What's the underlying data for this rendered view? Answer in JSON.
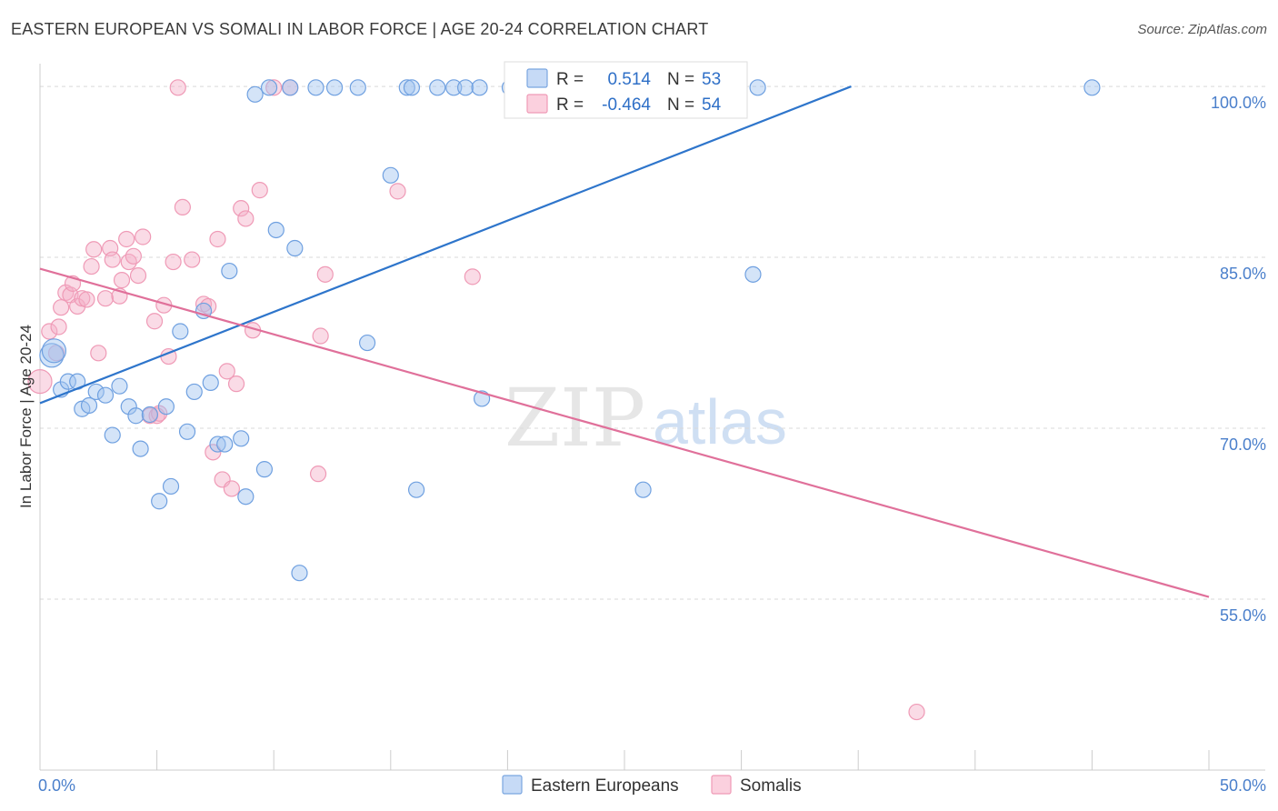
{
  "header": {
    "title": "EASTERN EUROPEAN VS SOMALI IN LABOR FORCE | AGE 20-24 CORRELATION CHART",
    "source": "Source: ZipAtlas.com"
  },
  "watermark": {
    "zip": "ZIP",
    "atlas": "atlas"
  },
  "legend_box": {
    "rows": [
      {
        "r_label": "R =",
        "r_value": "0.514",
        "n_label": "N =",
        "n_value": "53"
      },
      {
        "r_label": "R =",
        "r_value": "-0.464",
        "n_label": "N =",
        "n_value": "54"
      }
    ]
  },
  "bottom_legend": {
    "series1": "Eastern Europeans",
    "series2": "Somalis"
  },
  "chart_data": {
    "type": "scatter",
    "title": "EASTERN EUROPEAN VS SOMALI IN LABOR FORCE | AGE 20-24 CORRELATION CHART",
    "xlabel": "",
    "ylabel": "In Labor Force | Age 20-24",
    "xlim": [
      0,
      50
    ],
    "ylim": [
      40,
      102
    ],
    "x_tick_labels": [
      "0.0%",
      "50.0%"
    ],
    "y_ticks": [
      55,
      70,
      85,
      100
    ],
    "y_tick_labels": [
      "55.0%",
      "70.0%",
      "85.0%",
      "100.0%"
    ],
    "colors": {
      "blue": "#6fa0e0",
      "blue_line": "#2e75cb",
      "pink": "#ef9ab6",
      "pink_line": "#e0709a"
    },
    "series": [
      {
        "name": "Eastern Europeans",
        "color": "blue",
        "r": 0.514,
        "n": 53,
        "trend": {
          "x": [
            0,
            34.7
          ],
          "y": [
            72.2,
            100
          ]
        },
        "points": [
          [
            0.5,
            76.4
          ],
          [
            0.6,
            76.8
          ],
          [
            0.9,
            73.4
          ],
          [
            1.2,
            74.1
          ],
          [
            1.6,
            74.1
          ],
          [
            1.8,
            71.7
          ],
          [
            2.1,
            72.0
          ],
          [
            2.4,
            73.2
          ],
          [
            2.8,
            72.9
          ],
          [
            3.1,
            69.4
          ],
          [
            3.4,
            73.7
          ],
          [
            3.8,
            71.9
          ],
          [
            4.1,
            71.1
          ],
          [
            4.3,
            68.2
          ],
          [
            4.7,
            71.2
          ],
          [
            5.1,
            63.6
          ],
          [
            5.4,
            71.9
          ],
          [
            5.6,
            64.9
          ],
          [
            6.0,
            78.5
          ],
          [
            6.3,
            69.7
          ],
          [
            6.6,
            73.2
          ],
          [
            7.0,
            80.3
          ],
          [
            7.3,
            74.0
          ],
          [
            7.6,
            68.6
          ],
          [
            7.9,
            68.6
          ],
          [
            8.1,
            83.8
          ],
          [
            8.6,
            69.1
          ],
          [
            8.8,
            64.0
          ],
          [
            9.2,
            99.3
          ],
          [
            9.6,
            66.4
          ],
          [
            9.8,
            99.9
          ],
          [
            10.1,
            87.4
          ],
          [
            10.7,
            99.9
          ],
          [
            10.9,
            85.8
          ],
          [
            11.1,
            57.3
          ],
          [
            11.8,
            99.9
          ],
          [
            12.6,
            99.9
          ],
          [
            13.6,
            99.9
          ],
          [
            14.0,
            77.5
          ],
          [
            15.0,
            92.2
          ],
          [
            15.7,
            99.9
          ],
          [
            15.9,
            99.9
          ],
          [
            16.1,
            64.6
          ],
          [
            17.0,
            99.9
          ],
          [
            17.7,
            99.9
          ],
          [
            18.2,
            99.9
          ],
          [
            18.8,
            99.9
          ],
          [
            18.9,
            72.6
          ],
          [
            20.1,
            99.9
          ],
          [
            25.8,
            64.6
          ],
          [
            30.5,
            83.5
          ],
          [
            30.7,
            99.9
          ],
          [
            45.0,
            99.9
          ]
        ]
      },
      {
        "name": "Somalis",
        "color": "pink",
        "r": -0.464,
        "n": 54,
        "trend": {
          "x": [
            0,
            50
          ],
          "y": [
            84.0,
            55.2
          ]
        },
        "points": [
          [
            0.0,
            74.1
          ],
          [
            0.4,
            78.5
          ],
          [
            0.7,
            76.6
          ],
          [
            0.8,
            78.9
          ],
          [
            0.9,
            80.6
          ],
          [
            1.1,
            81.9
          ],
          [
            1.3,
            81.7
          ],
          [
            1.4,
            82.7
          ],
          [
            1.6,
            80.7
          ],
          [
            1.8,
            81.4
          ],
          [
            2.0,
            81.3
          ],
          [
            2.2,
            84.2
          ],
          [
            2.3,
            85.7
          ],
          [
            2.5,
            76.6
          ],
          [
            2.8,
            81.4
          ],
          [
            3.0,
            85.8
          ],
          [
            3.1,
            84.8
          ],
          [
            3.4,
            81.6
          ],
          [
            3.5,
            83.0
          ],
          [
            3.7,
            86.6
          ],
          [
            3.8,
            84.6
          ],
          [
            4.0,
            85.1
          ],
          [
            4.2,
            83.4
          ],
          [
            4.4,
            86.8
          ],
          [
            4.7,
            71.1
          ],
          [
            4.9,
            79.4
          ],
          [
            5.0,
            71.1
          ],
          [
            5.1,
            71.3
          ],
          [
            5.3,
            80.8
          ],
          [
            5.5,
            76.3
          ],
          [
            5.7,
            84.6
          ],
          [
            5.9,
            99.9
          ],
          [
            6.1,
            89.4
          ],
          [
            6.5,
            84.8
          ],
          [
            7.0,
            80.9
          ],
          [
            7.2,
            80.7
          ],
          [
            7.4,
            67.9
          ],
          [
            7.6,
            86.6
          ],
          [
            7.8,
            65.5
          ],
          [
            8.0,
            75.0
          ],
          [
            8.2,
            64.7
          ],
          [
            8.4,
            73.9
          ],
          [
            8.6,
            89.3
          ],
          [
            8.8,
            88.4
          ],
          [
            9.1,
            78.6
          ],
          [
            9.4,
            90.9
          ],
          [
            10.0,
            99.9
          ],
          [
            10.7,
            99.9
          ],
          [
            11.9,
            66.0
          ],
          [
            12.0,
            78.1
          ],
          [
            12.2,
            83.5
          ],
          [
            15.3,
            90.8
          ],
          [
            18.5,
            83.3
          ],
          [
            37.5,
            45.1
          ]
        ]
      }
    ]
  }
}
